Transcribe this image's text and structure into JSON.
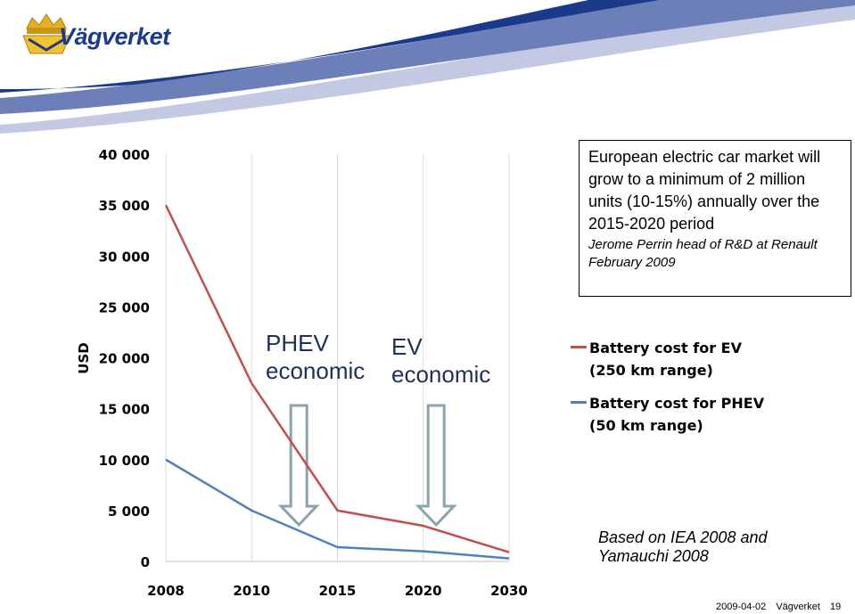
{
  "header": {
    "logo_text": "Vägverket"
  },
  "chart_data": {
    "type": "line",
    "categories": [
      "2008",
      "2010",
      "2015",
      "2020",
      "2030"
    ],
    "ylabel": "USD",
    "ylim": [
      0,
      40000
    ],
    "yticks": [
      0,
      5000,
      10000,
      15000,
      20000,
      25000,
      30000,
      35000,
      40000
    ],
    "ytick_labels": [
      "0",
      "5 000",
      "10 000",
      "15 000",
      "20 000",
      "25 000",
      "30 000",
      "35 000",
      "40 000"
    ],
    "grid": true,
    "legend_placement": "right",
    "series": [
      {
        "name": "Battery cost for EV\n(250 km range)",
        "color": "#c0504d",
        "values": [
          35000,
          17500,
          5000,
          3500,
          900
        ]
      },
      {
        "name": "Battery cost for PHEV\n(50 km range)",
        "color": "#4f81bd",
        "values": [
          10000,
          5000,
          1400,
          1000,
          300
        ]
      }
    ],
    "annotations": [
      {
        "label": "PHEV\neconomic",
        "category_position": 1.55
      },
      {
        "label": "EV\neconomic",
        "category_position": 3.15
      }
    ]
  },
  "quote": {
    "text": "European electric car market will grow to a minimum of 2 million units (10-15%) annually over the 2015-2020 period",
    "source": "Jerome Perrin head of R&D at Renault February 2009"
  },
  "footnote": "Based on IEA 2008 and Yamauchi 2008",
  "footer": {
    "date": "2009-04-02",
    "org": "Vägverket",
    "page": "19"
  },
  "colors": {
    "band_dark": "#1c3a8c",
    "band_mid": "#6d7fb8",
    "band_light": "#c3c9e2",
    "arrow_stroke": "#8aa3ad",
    "grid": "#d9d9d9"
  }
}
